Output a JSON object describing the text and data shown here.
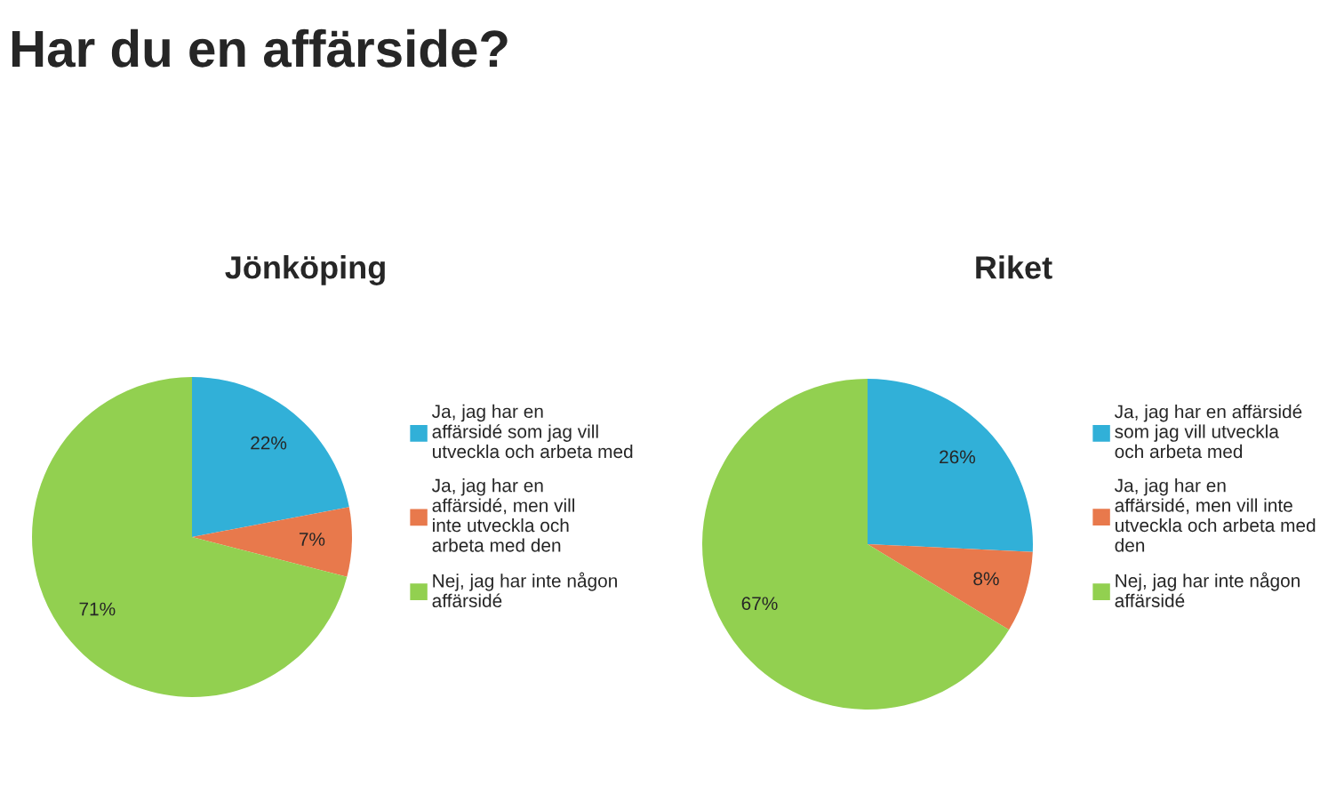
{
  "chart_data": [
    {
      "type": "pie",
      "title": "Jönköping",
      "annotations": [
        "Har du en affärside?"
      ],
      "legend": "right",
      "data_labels": true,
      "categories": [
        "Ja, jag har en affärsidé som jag vill utveckla och arbeta med",
        "Ja, jag har en affärsidé, men vill inte utveckla och arbeta med den",
        "Nej, jag har inte någon affärsidé"
      ],
      "values": [
        22,
        7,
        71
      ],
      "value_labels": [
        "22%",
        "7%",
        "71%"
      ],
      "colors": [
        "#31b0d8",
        "#e8794c",
        "#92d050"
      ]
    },
    {
      "type": "pie",
      "title": "Riket",
      "legend": "right",
      "data_labels": true,
      "categories": [
        "Ja, jag har en affärsidé som jag vill utveckla och arbeta med",
        "Ja, jag har en affärsidé, men vill inte utveckla och arbeta med den",
        "Nej, jag har inte någon affärsidé"
      ],
      "values": [
        26,
        8,
        67
      ],
      "value_labels": [
        "26%",
        "8%",
        "67%"
      ],
      "colors": [
        "#31b0d8",
        "#e8794c",
        "#92d050"
      ]
    }
  ]
}
